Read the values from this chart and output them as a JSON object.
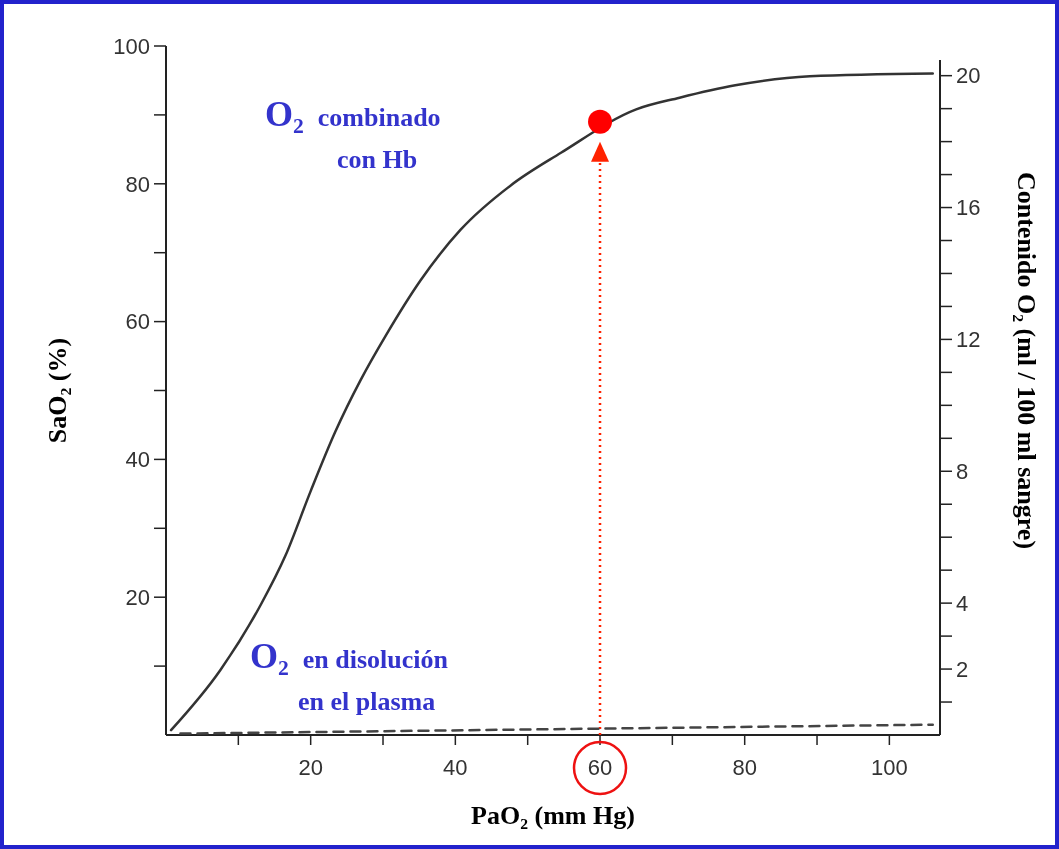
{
  "chart_data": {
    "type": "line",
    "xlabel": "PaO₂  (mm Hg)",
    "ylabel": "SaO₂  (%)",
    "y2label": "Contenido  O₂  (ml / 100 ml sangre)",
    "xlim": [
      0,
      107
    ],
    "ylim": [
      0,
      100
    ],
    "y2lim": [
      0,
      20.9
    ],
    "xticks": [
      {
        "value": 10,
        "label": null
      },
      20,
      {
        "value": 30,
        "label": null
      },
      40,
      {
        "value": 50,
        "label": null
      },
      60,
      {
        "value": 70,
        "label": null
      },
      80,
      {
        "value": 90,
        "label": null
      },
      100
    ],
    "yticks": [
      {
        "value": 10,
        "label": null
      },
      20,
      {
        "value": 30,
        "label": null
      },
      40,
      {
        "value": 50,
        "label": null
      },
      60,
      {
        "value": 70,
        "label": null
      },
      80,
      {
        "value": 90,
        "label": null
      },
      100
    ],
    "y2ticks": [
      {
        "value": 1,
        "label": null
      },
      2,
      {
        "value": 3,
        "label": null
      },
      4,
      {
        "value": 5,
        "label": null
      },
      {
        "value": 6,
        "label": null
      },
      {
        "value": 7,
        "label": null
      },
      8,
      {
        "value": 9,
        "label": null
      },
      {
        "value": 10,
        "label": null
      },
      {
        "value": 11,
        "label": null
      },
      12,
      {
        "value": 13,
        "label": null
      },
      {
        "value": 14,
        "label": null
      },
      {
        "value": 15,
        "label": null
      },
      16,
      {
        "value": 17,
        "label": null
      },
      {
        "value": 18,
        "label": null
      },
      {
        "value": 19,
        "label": null
      },
      20
    ],
    "grid": false,
    "series": [
      {
        "type": "line",
        "color": "#333333",
        "line_style": "solid",
        "x": [
          0.7,
          7.5,
          13.1,
          16.5,
          20,
          23.4,
          26.9,
          30.4,
          35.2,
          40.7,
          47.7,
          54.6,
          65,
          71,
          78.7,
          89,
          106
        ],
        "values": [
          0.7,
          9.4,
          18.9,
          26,
          35.4,
          44,
          51.5,
          58,
          66,
          73.3,
          79.8,
          84.5,
          90.8,
          92.5,
          94.3,
          95.6,
          96
        ]
      },
      {
        "type": "line",
        "color": "#444444",
        "line_style": "dashed",
        "x": [
          2,
          106
        ],
        "values": [
          0.2,
          1.5
        ]
      },
      {
        "type": "scatter",
        "color": "#ff0000",
        "marker": "circle",
        "x": [
          60
        ],
        "values": [
          89
        ]
      }
    ],
    "ref_lines": [
      {
        "axis": "x",
        "value": 60,
        "color": "#ff2200",
        "line_style": "dotted"
      }
    ],
    "annotations": [
      "O₂ combinado con Hb",
      "O₂ en disolución en el plasma"
    ]
  }
}
